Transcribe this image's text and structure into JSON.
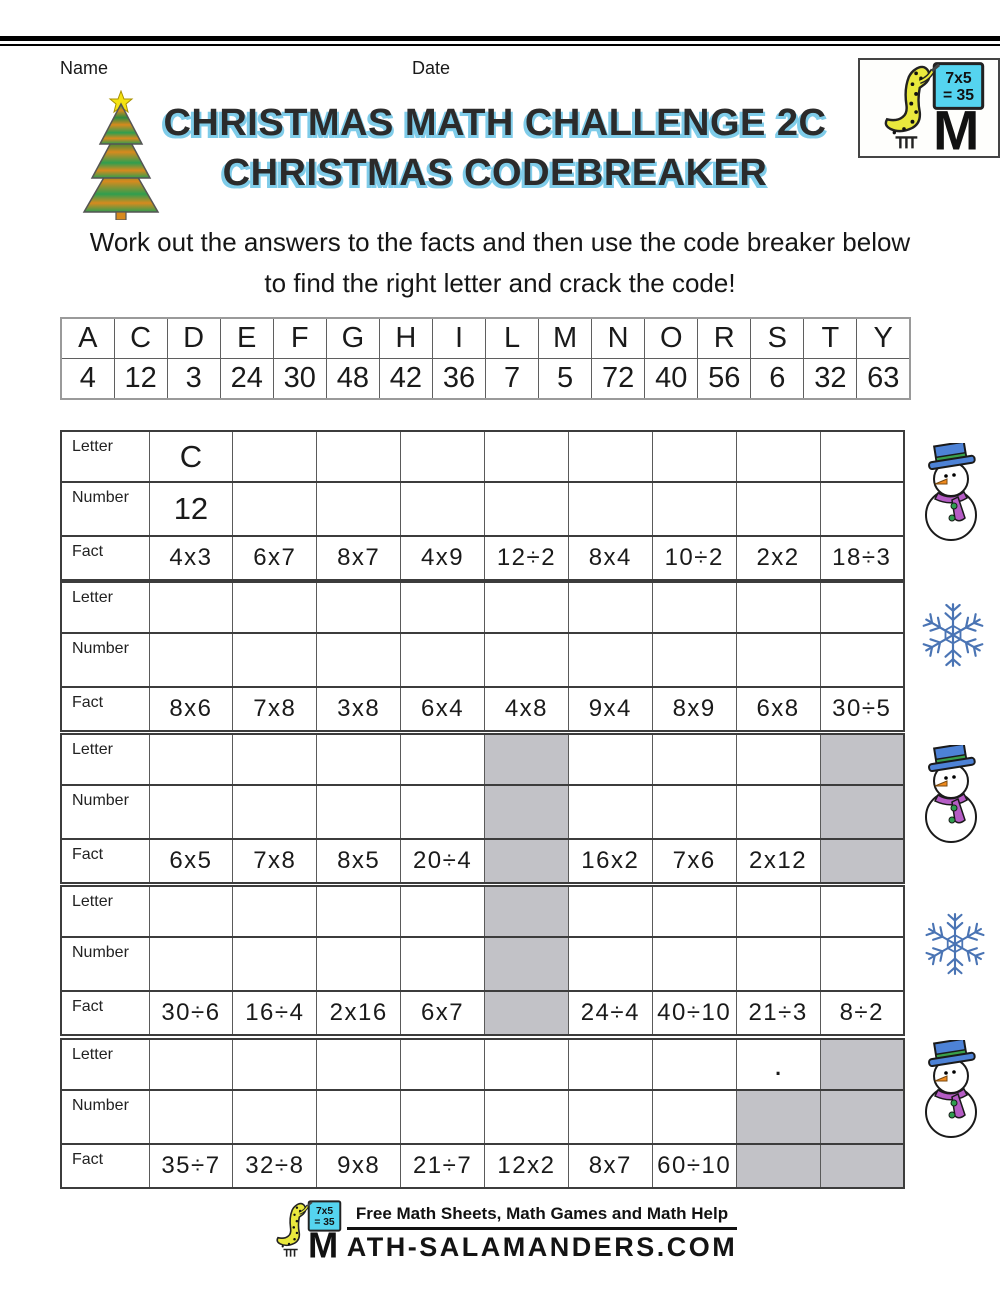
{
  "page": {
    "name_label": "Name",
    "date_label": "Date"
  },
  "title": {
    "line1": "CHRISTMAS MATH CHALLENGE 2C",
    "line2": "CHRISTMAS CODEBREAKER"
  },
  "instructions": {
    "line1": "Work out the answers to the facts and then use the code breaker below",
    "line2": "to find the right letter and crack the code!"
  },
  "code_table": {
    "letters": [
      "A",
      "C",
      "D",
      "E",
      "F",
      "G",
      "H",
      "I",
      "L",
      "M",
      "N",
      "O",
      "R",
      "S",
      "T",
      "Y"
    ],
    "numbers": [
      "4",
      "12",
      "3",
      "24",
      "30",
      "48",
      "42",
      "36",
      "7",
      "5",
      "72",
      "40",
      "56",
      "6",
      "32",
      "63"
    ]
  },
  "answer_row_labels": {
    "letter": "Letter",
    "number": "Number",
    "fact": "Fact"
  },
  "answer_tables": [
    {
      "icon": "snowman",
      "columns": [
        {
          "letter": "C",
          "number": "12",
          "fact": "4x3"
        },
        {
          "fact": "6x7"
        },
        {
          "fact": "8x7"
        },
        {
          "fact": "4x9"
        },
        {
          "fact": "12÷2"
        },
        {
          "fact": "8x4"
        },
        {
          "fact": "10÷2"
        },
        {
          "fact": "2x2"
        },
        {
          "fact": "18÷3"
        }
      ]
    },
    {
      "icon": "snowflake",
      "columns": [
        {
          "fact": "8x6"
        },
        {
          "fact": "7x8"
        },
        {
          "fact": "3x8"
        },
        {
          "fact": "6x4"
        },
        {
          "fact": "4x8"
        },
        {
          "fact": "9x4"
        },
        {
          "fact": "8x9"
        },
        {
          "fact": "6x8"
        },
        {
          "fact": "30÷5"
        }
      ]
    },
    {
      "icon": "snowman",
      "columns": [
        {
          "fact": "6x5"
        },
        {
          "fact": "7x8"
        },
        {
          "fact": "8x5"
        },
        {
          "fact": "20÷4"
        },
        {
          "shaded": [
            "letter",
            "number",
            "fact"
          ]
        },
        {
          "fact": "16x2"
        },
        {
          "fact": "7x6"
        },
        {
          "fact": "2x12"
        },
        {
          "shaded": [
            "letter",
            "number",
            "fact"
          ]
        }
      ]
    },
    {
      "icon": "snowflake",
      "columns": [
        {
          "fact": "30÷6"
        },
        {
          "fact": "16÷4"
        },
        {
          "fact": "2x16"
        },
        {
          "fact": "6x7"
        },
        {
          "shaded": [
            "letter",
            "number",
            "fact"
          ]
        },
        {
          "fact": "24÷4"
        },
        {
          "fact": "40÷10"
        },
        {
          "fact": "21÷3"
        },
        {
          "fact": "8÷2"
        }
      ]
    },
    {
      "icon": "snowman",
      "columns": [
        {
          "fact": "35÷7"
        },
        {
          "fact": "32÷8"
        },
        {
          "fact": "9x8"
        },
        {
          "fact": "21÷7"
        },
        {
          "fact": "12x2"
        },
        {
          "fact": "8x7"
        },
        {
          "fact": "60÷10"
        },
        {
          "letter": ".",
          "shaded": [
            "number",
            "fact"
          ]
        },
        {
          "shaded": [
            "letter",
            "number",
            "fact"
          ]
        }
      ]
    }
  ],
  "logo": {
    "board_line1": "7x5",
    "board_line2": "= 35",
    "m": "M"
  },
  "footer": {
    "tagline": "Free Math Sheets, Math Games and Math Help",
    "site_m": "M",
    "site_rest": "ATH-SALAMANDERS.COM"
  },
  "icons": [
    "christmas-tree",
    "salamander-logo",
    "snowman",
    "snowflake"
  ],
  "colors": {
    "title_shadow": "#7fcce9",
    "shaded_cell": "#c2c2c7",
    "snowman_hat": "#4d82d6",
    "snowman_hat_band": "#3aa04a",
    "snowman_scarf": "#b55cc5",
    "snowman_button": "#2f9e4f",
    "snowman_nose": "#f08a1e",
    "snowflake_blue": "#4a74b4",
    "board_cyan": "#55d4f0",
    "salamander_yellow": "#e9e83d",
    "tree_orange": "#d78a1e",
    "tree_green": "#2f9e4f",
    "star_yellow": "#f5e312"
  }
}
